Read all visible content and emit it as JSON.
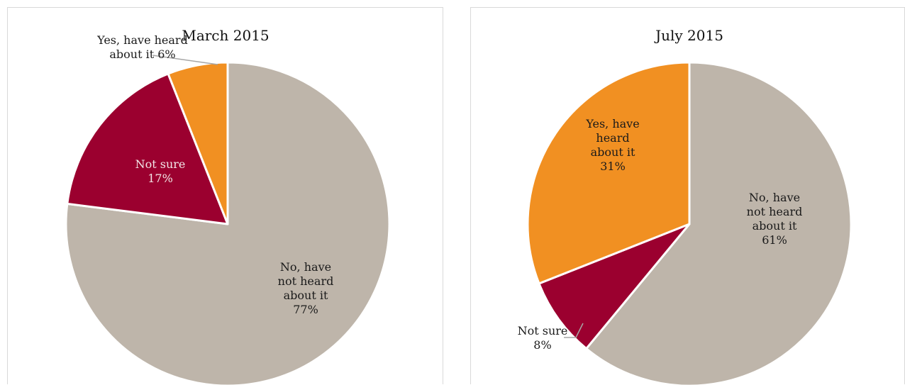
{
  "colors": {
    "no": "#beb5aa",
    "not_sure": "#9b002f",
    "yes": "#f19022",
    "slice_border": "#ffffff",
    "leader": "#a6a6a6",
    "label_dark": "#1a1a1a",
    "label_light": "#f2e6e8"
  },
  "chart_data": [
    {
      "type": "pie",
      "title": "March 2015",
      "slices": [
        {
          "key": "no",
          "lines": [
            "No, have",
            "not heard",
            "about it",
            "77%"
          ],
          "value": 77
        },
        {
          "key": "not_sure",
          "lines": [
            "Not sure",
            "17%"
          ],
          "value": 17
        },
        {
          "key": "yes",
          "lines": [
            "Yes, have heard",
            "about it 6%"
          ],
          "value": 6
        }
      ],
      "legend": "none"
    },
    {
      "type": "pie",
      "title": "July 2015",
      "slices": [
        {
          "key": "no",
          "lines": [
            "No, have",
            "not heard",
            "about it",
            "61%"
          ],
          "value": 61
        },
        {
          "key": "not_sure",
          "lines": [
            "Not sure",
            "8%"
          ],
          "value": 8
        },
        {
          "key": "yes",
          "lines": [
            "Yes, have",
            "heard",
            "about it",
            "31%"
          ],
          "value": 31
        }
      ],
      "legend": "none"
    }
  ]
}
